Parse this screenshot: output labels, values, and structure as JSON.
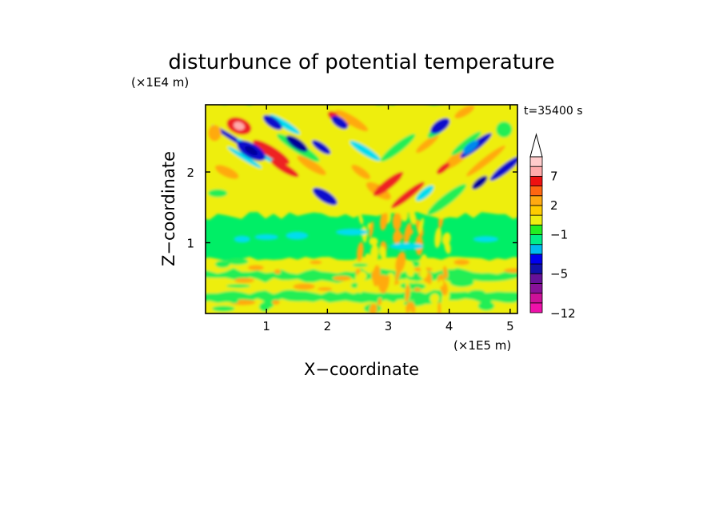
{
  "chart_data": {
    "type": "heatmap",
    "title": "disturbunce of potential temperature",
    "xlabel": "X−coordinate",
    "ylabel": "Z−coordinate",
    "x_multiplier_label": "(×1E5 m)",
    "y_multiplier_label": "(×1E4 m)",
    "time_label": "t=35400 s",
    "xlim": [
      0,
      5.12
    ],
    "ylim": [
      0,
      2.95
    ],
    "xticks": [
      {
        "value": 1,
        "label": "1"
      },
      {
        "value": 2,
        "label": "2"
      },
      {
        "value": 3,
        "label": "3"
      },
      {
        "value": 4,
        "label": "4"
      },
      {
        "value": 5,
        "label": "5"
      }
    ],
    "yticks": [
      {
        "value": 1,
        "label": "1"
      },
      {
        "value": 2,
        "label": "2"
      }
    ],
    "colorbar": {
      "min_label": "−12",
      "levels": [
        "−12",
        "−9",
        "−7",
        "−5",
        "−4",
        "−3",
        "−2",
        "−1",
        "0",
        "1",
        "2",
        "3",
        "5",
        "7",
        "9",
        "11"
      ],
      "labels": [
        {
          "level_index": 3,
          "text": "−5"
        },
        {
          "level_index": 7,
          "text": "−1"
        },
        {
          "level_index": 10,
          "text": "2"
        },
        {
          "level_index": 13,
          "text": "7"
        }
      ],
      "colors": [
        "#ee11aa",
        "#cc1199",
        "#881199",
        "#661199",
        "#1111aa",
        "#0000ee",
        "#00bbee",
        "#00ee88",
        "#22ee22",
        "#eeee11",
        "#ffcc00",
        "#ffaa11",
        "#ff6611",
        "#ee1111",
        "#ffaaaa",
        "#ffcccc"
      ],
      "extend_max": true
    },
    "colors": {
      "background": "#00ee66",
      "frame": "#000000"
    }
  }
}
